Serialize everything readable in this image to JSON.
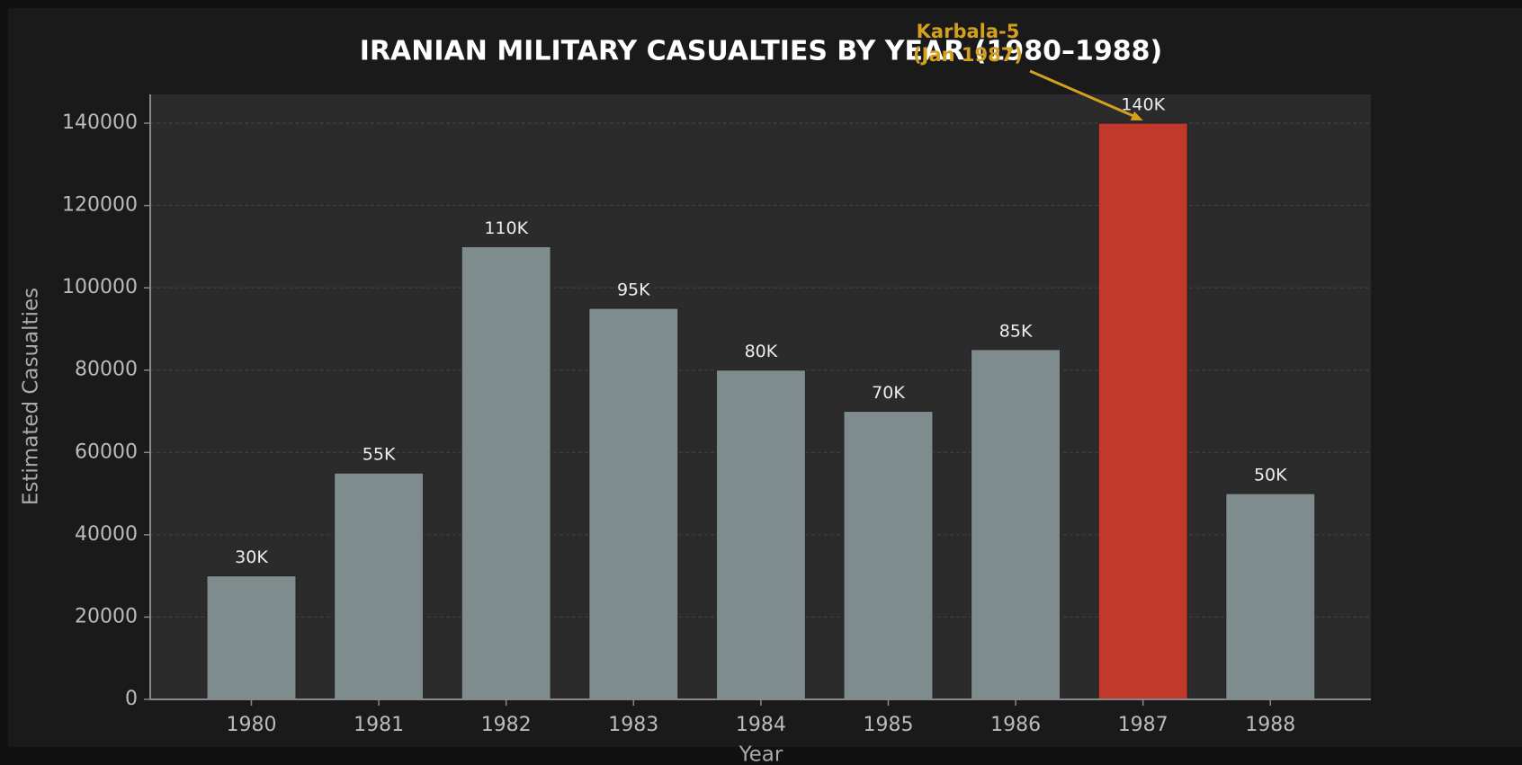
{
  "chart_data": {
    "type": "bar",
    "title": "IRANIAN MILITARY CASUALTIES BY YEAR (1980–1988)",
    "x_label": "Year",
    "y_label": "Estimated Casualties",
    "categories": [
      "1980",
      "1981",
      "1982",
      "1983",
      "1984",
      "1985",
      "1986",
      "1987",
      "1988"
    ],
    "values": [
      30000,
      55000,
      110000,
      95000,
      80000,
      70000,
      85000,
      140000,
      50000
    ],
    "value_labels": [
      "30K",
      "55K",
      "110K",
      "95K",
      "80K",
      "70K",
      "85K",
      "140K",
      "50K"
    ],
    "colors": [
      "#7f8c8d",
      "#7f8c8d",
      "#7f8c8d",
      "#7f8c8d",
      "#7f8c8d",
      "#7f8c8d",
      "#7f8c8d",
      "#c0392b",
      "#7f8c8d"
    ],
    "ylim": [
      0,
      147000
    ],
    "yticks": [
      0,
      20000,
      40000,
      60000,
      80000,
      100000,
      120000,
      140000
    ],
    "grid": true,
    "annotation": {
      "lines": [
        "Karbala-5",
        "(Jan 1987)"
      ],
      "color": "#d4a020",
      "target": "1987"
    }
  }
}
